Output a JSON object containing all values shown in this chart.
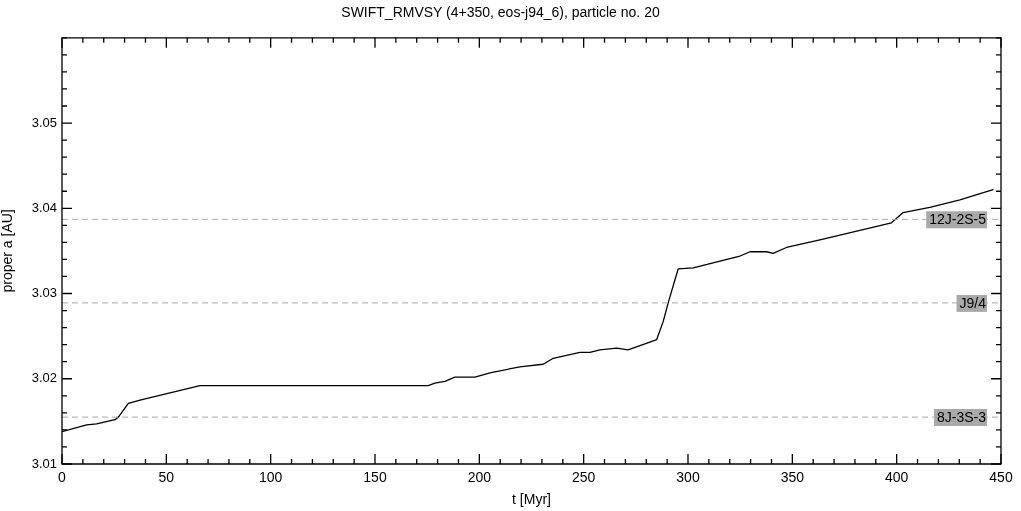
{
  "chart_data": {
    "type": "line",
    "title": "SWIFT_RMVSY (4+350, eos-j94_6), particle no. 20",
    "xlabel": "t [Myr]",
    "ylabel": "proper a [AU]",
    "xlim": [
      0,
      450
    ],
    "ylim": [
      3.01,
      3.06
    ],
    "xticks": [
      0,
      {
        "value": 10,
        "label": null
      },
      {
        "value": 20,
        "label": null
      },
      {
        "value": 30,
        "label": null
      },
      {
        "value": 40,
        "label": null
      },
      50,
      {
        "value": 60,
        "label": null
      },
      {
        "value": 70,
        "label": null
      },
      {
        "value": 80,
        "label": null
      },
      {
        "value": 90,
        "label": null
      },
      100,
      {
        "value": 110,
        "label": null
      },
      {
        "value": 120,
        "label": null
      },
      {
        "value": 130,
        "label": null
      },
      {
        "value": 140,
        "label": null
      },
      150,
      {
        "value": 160,
        "label": null
      },
      {
        "value": 170,
        "label": null
      },
      {
        "value": 180,
        "label": null
      },
      {
        "value": 190,
        "label": null
      },
      200,
      {
        "value": 210,
        "label": null
      },
      {
        "value": 220,
        "label": null
      },
      {
        "value": 230,
        "label": null
      },
      {
        "value": 240,
        "label": null
      },
      250,
      {
        "value": 260,
        "label": null
      },
      {
        "value": 270,
        "label": null
      },
      {
        "value": 280,
        "label": null
      },
      {
        "value": 290,
        "label": null
      },
      300,
      {
        "value": 310,
        "label": null
      },
      {
        "value": 320,
        "label": null
      },
      {
        "value": 330,
        "label": null
      },
      {
        "value": 340,
        "label": null
      },
      350,
      {
        "value": 360,
        "label": null
      },
      {
        "value": 370,
        "label": null
      },
      {
        "value": 380,
        "label": null
      },
      {
        "value": 390,
        "label": null
      },
      400,
      {
        "value": 410,
        "label": null
      },
      {
        "value": 420,
        "label": null
      },
      {
        "value": 430,
        "label": null
      },
      {
        "value": 440,
        "label": null
      },
      450
    ],
    "yticks": [
      {
        "value": 3.01,
        "label": "3.01"
      },
      {
        "value": 3.012,
        "label": null
      },
      {
        "value": 3.014,
        "label": null
      },
      {
        "value": 3.016,
        "label": null
      },
      {
        "value": 3.018,
        "label": null
      },
      {
        "value": 3.02,
        "label": "3.02"
      },
      {
        "value": 3.022,
        "label": null
      },
      {
        "value": 3.024,
        "label": null
      },
      {
        "value": 3.026,
        "label": null
      },
      {
        "value": 3.028,
        "label": null
      },
      {
        "value": 3.03,
        "label": "3.03"
      },
      {
        "value": 3.032,
        "label": null
      },
      {
        "value": 3.034,
        "label": null
      },
      {
        "value": 3.036,
        "label": null
      },
      {
        "value": 3.038,
        "label": null
      },
      {
        "value": 3.04,
        "label": "3.04"
      },
      {
        "value": 3.042,
        "label": null
      },
      {
        "value": 3.044,
        "label": null
      },
      {
        "value": 3.046,
        "label": null
      },
      {
        "value": 3.048,
        "label": null
      },
      {
        "value": 3.05,
        "label": "3.05"
      },
      {
        "value": 3.052,
        "label": null
      },
      {
        "value": 3.054,
        "label": null
      },
      {
        "value": 3.056,
        "label": null
      },
      {
        "value": 3.058,
        "label": null
      },
      {
        "value": 3.06,
        "label": null
      }
    ],
    "x": [
      0,
      11.8,
      16.6,
      25.4,
      27,
      31.8,
      37.4,
      66.1,
      175.5,
      178.7,
      183.5,
      188.3,
      197.9,
      205.1,
      219.4,
      230.6,
      235.4,
      248.2,
      253,
      257.8,
      265.8,
      271.3,
      277,
      285,
      288.1,
      290.5,
      295.3,
      302.5,
      324.9,
      329.7,
      337.7,
      340.8,
      347.2,
      363.2,
      397.5,
      403.1,
      415.9,
      430.3,
      446.2
    ],
    "series": [
      {
        "color": "#000000",
        "values": [
          3.0138,
          3.0146,
          3.0147,
          3.0152,
          3.0155,
          3.0171,
          3.0175,
          3.0192,
          3.0192,
          3.0195,
          3.0197,
          3.0202,
          3.0202,
          3.0207,
          3.0214,
          3.0217,
          3.0224,
          3.0231,
          3.0231,
          3.0234,
          3.0236,
          3.0234,
          3.0239,
          3.0246,
          3.0267,
          3.0289,
          3.0329,
          3.033,
          3.0344,
          3.0349,
          3.0349,
          3.0347,
          3.0354,
          3.0363,
          3.0383,
          3.0395,
          3.0401,
          3.041,
          3.0422
        ]
      }
    ],
    "ref_lines": [
      {
        "axis": "y",
        "value": 3.0387,
        "label": "12J-2S-5",
        "color": "#aaaaaa",
        "line_style": "dashed"
      },
      {
        "axis": "y",
        "value": 3.0289,
        "label": "J9/4",
        "color": "#aaaaaa",
        "line_style": "dashed"
      },
      {
        "axis": "y",
        "value": 3.0155,
        "label": "8J-3S-3",
        "color": "#aaaaaa",
        "line_style": "dashed"
      }
    ],
    "grid": false,
    "legend": false,
    "marker": "none",
    "line_style": "solid"
  }
}
